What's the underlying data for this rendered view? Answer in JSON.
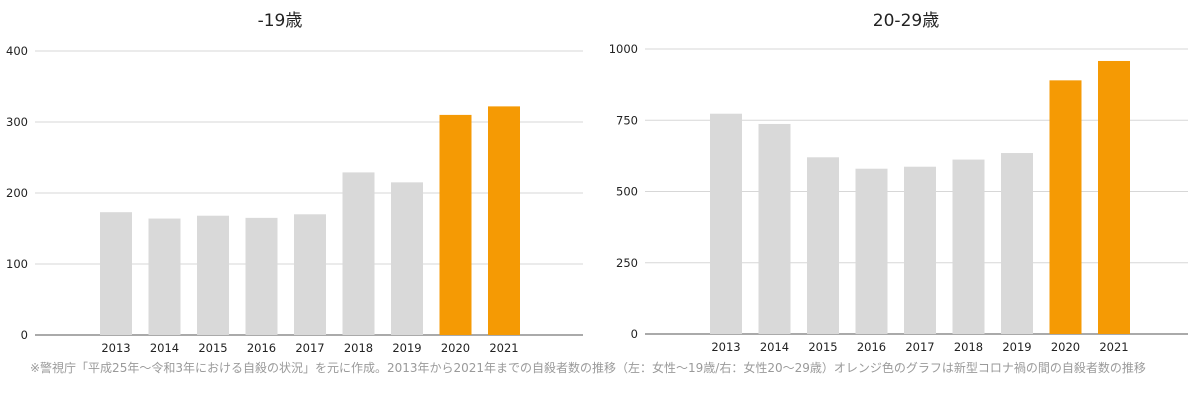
{
  "caption": "※警視庁「平成25年〜令和3年における自殺の状況」を元に作成。2013年から2021年までの自殺者数の推移（左：女性〜19歳/右：女性20〜29歳）オレンジ色のグラフは新型コロナ禍の間の自殺者数の推移",
  "colors": {
    "normal": "#d9d9d9",
    "highlight": "#f59a04",
    "grid": "#d7d7d7",
    "text": "#222222"
  },
  "chart_data": [
    {
      "type": "bar",
      "title": "-19歳",
      "categories": [
        "2013",
        "2014",
        "2015",
        "2016",
        "2017",
        "2018",
        "2019",
        "2020",
        "2021"
      ],
      "values": [
        173,
        164,
        168,
        165,
        170,
        229,
        215,
        310,
        322
      ],
      "highlight": [
        "2020",
        "2021"
      ],
      "ylim": [
        0,
        400
      ],
      "yticks": [
        0,
        100,
        200,
        300,
        400
      ],
      "ytick_labels": [
        "0",
        "100",
        "200",
        "300",
        "400"
      ],
      "grid": true
    },
    {
      "type": "bar",
      "title": "20-29歳",
      "categories": [
        "2013",
        "2014",
        "2015",
        "2016",
        "2017",
        "2018",
        "2019",
        "2020",
        "2021"
      ],
      "values": [
        773,
        737,
        620,
        580,
        587,
        612,
        635,
        890,
        958
      ],
      "highlight": [
        "2020",
        "2021"
      ],
      "ylim": [
        0,
        1000
      ],
      "yticks": [
        0,
        250,
        500,
        750,
        1000
      ],
      "ytick_labels": [
        "0",
        "250",
        "500",
        "750",
        "1000"
      ],
      "grid": true
    }
  ]
}
